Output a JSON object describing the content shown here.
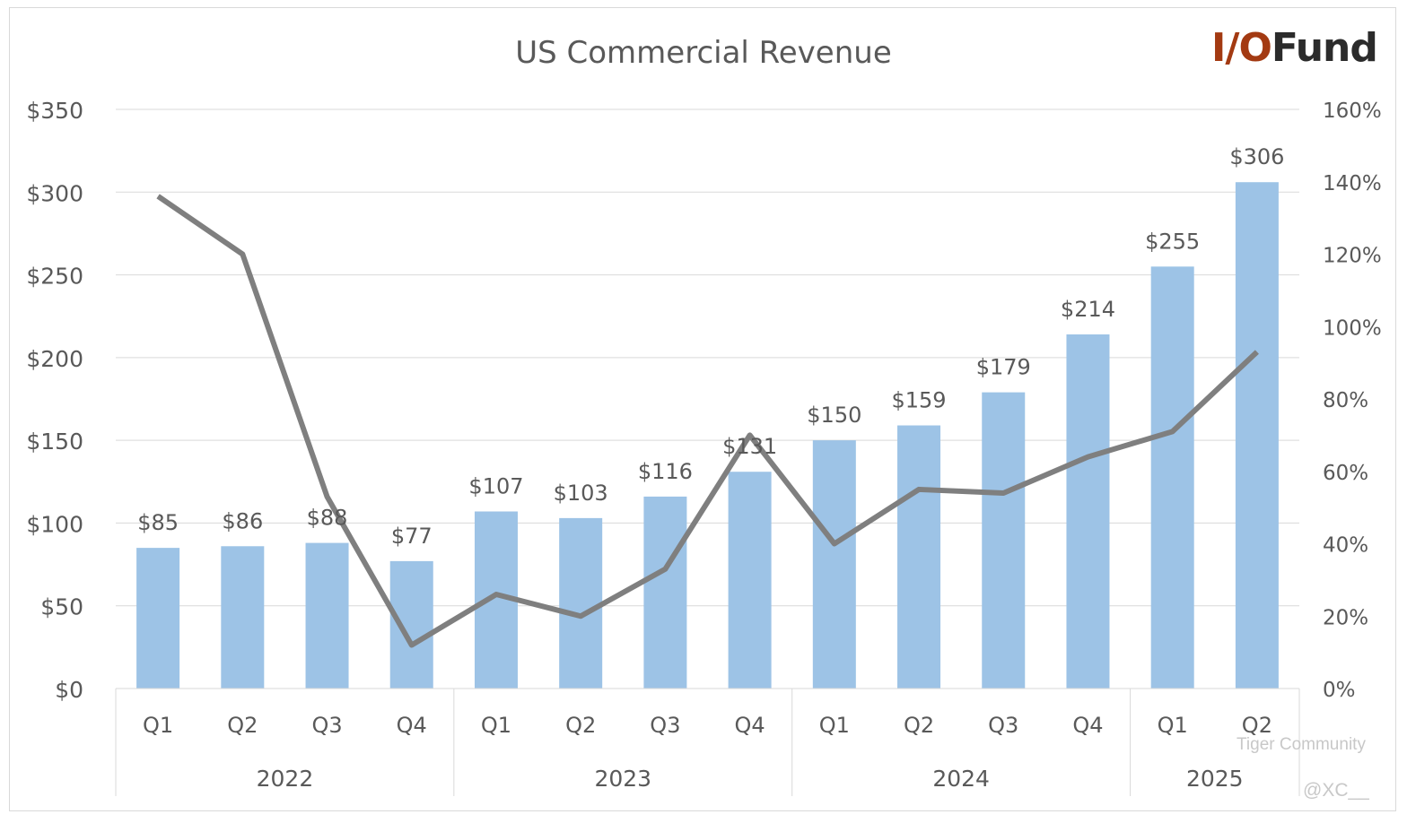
{
  "chart_data": {
    "type": "bar+line",
    "title": "US Commercial Revenue",
    "categories": [
      "Q1",
      "Q2",
      "Q3",
      "Q4",
      "Q1",
      "Q2",
      "Q3",
      "Q4",
      "Q1",
      "Q2",
      "Q3",
      "Q4",
      "Q1",
      "Q2"
    ],
    "groups": [
      {
        "label": "2022",
        "count": 4
      },
      {
        "label": "2023",
        "count": 4
      },
      {
        "label": "2024",
        "count": 4
      },
      {
        "label": "2025",
        "count": 2
      }
    ],
    "series": [
      {
        "type": "bar",
        "axis": "left",
        "color": "#9dc3e6",
        "values": [
          85,
          86,
          88,
          77,
          107,
          103,
          116,
          131,
          150,
          159,
          179,
          214,
          255,
          306
        ],
        "labels": [
          "$85",
          "$86",
          "$88",
          "$77",
          "$107",
          "$103",
          "$116",
          "$131",
          "$150",
          "$159",
          "$179",
          "$214",
          "$255",
          "$306"
        ]
      },
      {
        "type": "line",
        "axis": "right",
        "color": "#7f7f7f",
        "values": [
          136,
          120,
          53,
          12,
          26,
          20,
          33,
          70,
          40,
          55,
          54,
          64,
          71,
          93
        ]
      }
    ],
    "left_axis": {
      "min": 0,
      "max": 350,
      "ticks": [
        "$0",
        "$50",
        "$100",
        "$150",
        "$200",
        "$250",
        "$300",
        "$350"
      ]
    },
    "right_axis": {
      "min": 0,
      "max": 160,
      "ticks": [
        "0%",
        "20%",
        "40%",
        "60%",
        "80%",
        "100%",
        "120%",
        "140%",
        "160%"
      ]
    },
    "grid": true
  },
  "logo": {
    "part1": "I/O",
    "part2": "Fund"
  },
  "watermark": {
    "text": "Tiger Community",
    "handle": "@XC__"
  }
}
